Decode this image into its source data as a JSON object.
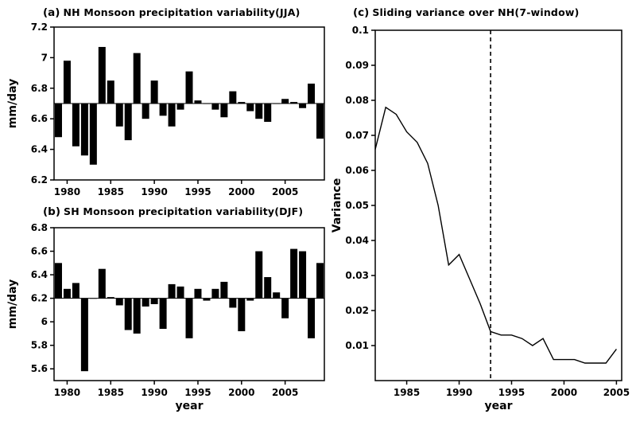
{
  "figure": {
    "background": "#ffffff",
    "ink": "#000000"
  },
  "chart_data": [
    {
      "id": "a",
      "type": "bar",
      "panel_label": "(a)",
      "title": "NH Monsoon precipitation variability(JJA)",
      "ylabel": "mm/day",
      "xlabel": "",
      "ylim": [
        6.2,
        7.2
      ],
      "yticks": [
        6.2,
        6.4,
        6.6,
        6.8,
        7,
        7.2
      ],
      "xlim": [
        1978.5,
        2009.5
      ],
      "xticks": [
        1980,
        1985,
        1990,
        1995,
        2000,
        2005
      ],
      "baseline": 6.7,
      "years": [
        1979,
        1980,
        1981,
        1982,
        1983,
        1984,
        1985,
        1986,
        1987,
        1988,
        1989,
        1990,
        1991,
        1992,
        1993,
        1994,
        1995,
        1996,
        1997,
        1998,
        1999,
        2000,
        2001,
        2002,
        2003,
        2004,
        2005,
        2006,
        2007,
        2008,
        2009
      ],
      "values": [
        6.48,
        6.98,
        6.42,
        6.36,
        6.3,
        7.07,
        6.85,
        6.55,
        6.46,
        7.03,
        6.6,
        6.85,
        6.62,
        6.55,
        6.66,
        6.91,
        6.72,
        6.7,
        6.66,
        6.61,
        6.78,
        6.71,
        6.65,
        6.6,
        6.58,
        6.7,
        6.73,
        6.71,
        6.67,
        6.83,
        6.47
      ]
    },
    {
      "id": "b",
      "type": "bar",
      "panel_label": "(b)",
      "title": "SH Monsoon precipitation variability(DJF)",
      "ylabel": "mm/day",
      "xlabel": "year",
      "ylim": [
        5.5,
        6.8
      ],
      "yticks": [
        5.6,
        5.8,
        6,
        6.2,
        6.4,
        6.6,
        6.8
      ],
      "xlim": [
        1978.5,
        2009.5
      ],
      "xticks": [
        1980,
        1985,
        1990,
        1995,
        2000,
        2005
      ],
      "baseline": 6.2,
      "years": [
        1979,
        1980,
        1981,
        1982,
        1983,
        1984,
        1985,
        1986,
        1987,
        1988,
        1989,
        1990,
        1991,
        1992,
        1993,
        1994,
        1995,
        1996,
        1997,
        1998,
        1999,
        2000,
        2001,
        2002,
        2003,
        2004,
        2005,
        2006,
        2007,
        2008,
        2009
      ],
      "values": [
        6.5,
        6.28,
        6.33,
        5.58,
        6.2,
        6.45,
        6.21,
        6.14,
        5.93,
        5.9,
        6.13,
        6.15,
        5.94,
        6.32,
        6.3,
        5.86,
        6.28,
        6.18,
        6.28,
        6.34,
        6.12,
        5.92,
        6.18,
        6.6,
        6.38,
        6.25,
        6.03,
        6.62,
        6.6,
        5.86,
        6.5
      ]
    },
    {
      "id": "c",
      "type": "line",
      "panel_label": "(c)",
      "title": "Sliding variance over NH(7-window)",
      "ylabel": "Variance",
      "xlabel": "year",
      "ylim": [
        0,
        0.1
      ],
      "yticks": [
        0.01,
        0.02,
        0.03,
        0.04,
        0.05,
        0.06,
        0.07,
        0.08,
        0.09,
        0.1
      ],
      "xlim": [
        1982,
        2005.5
      ],
      "xticks": [
        1985,
        1990,
        1995,
        2000,
        2005
      ],
      "vline": 1993,
      "years": [
        1982,
        1983,
        1984,
        1985,
        1986,
        1987,
        1988,
        1989,
        1990,
        1991,
        1992,
        1993,
        1994,
        1995,
        1996,
        1997,
        1998,
        1999,
        2000,
        2001,
        2002,
        2003,
        2004,
        2005
      ],
      "values": [
        0.066,
        0.078,
        0.076,
        0.071,
        0.068,
        0.062,
        0.05,
        0.033,
        0.036,
        0.029,
        0.022,
        0.014,
        0.013,
        0.013,
        0.012,
        0.01,
        0.012,
        0.006,
        0.006,
        0.006,
        0.005,
        0.005,
        0.005,
        0.009
      ]
    }
  ]
}
